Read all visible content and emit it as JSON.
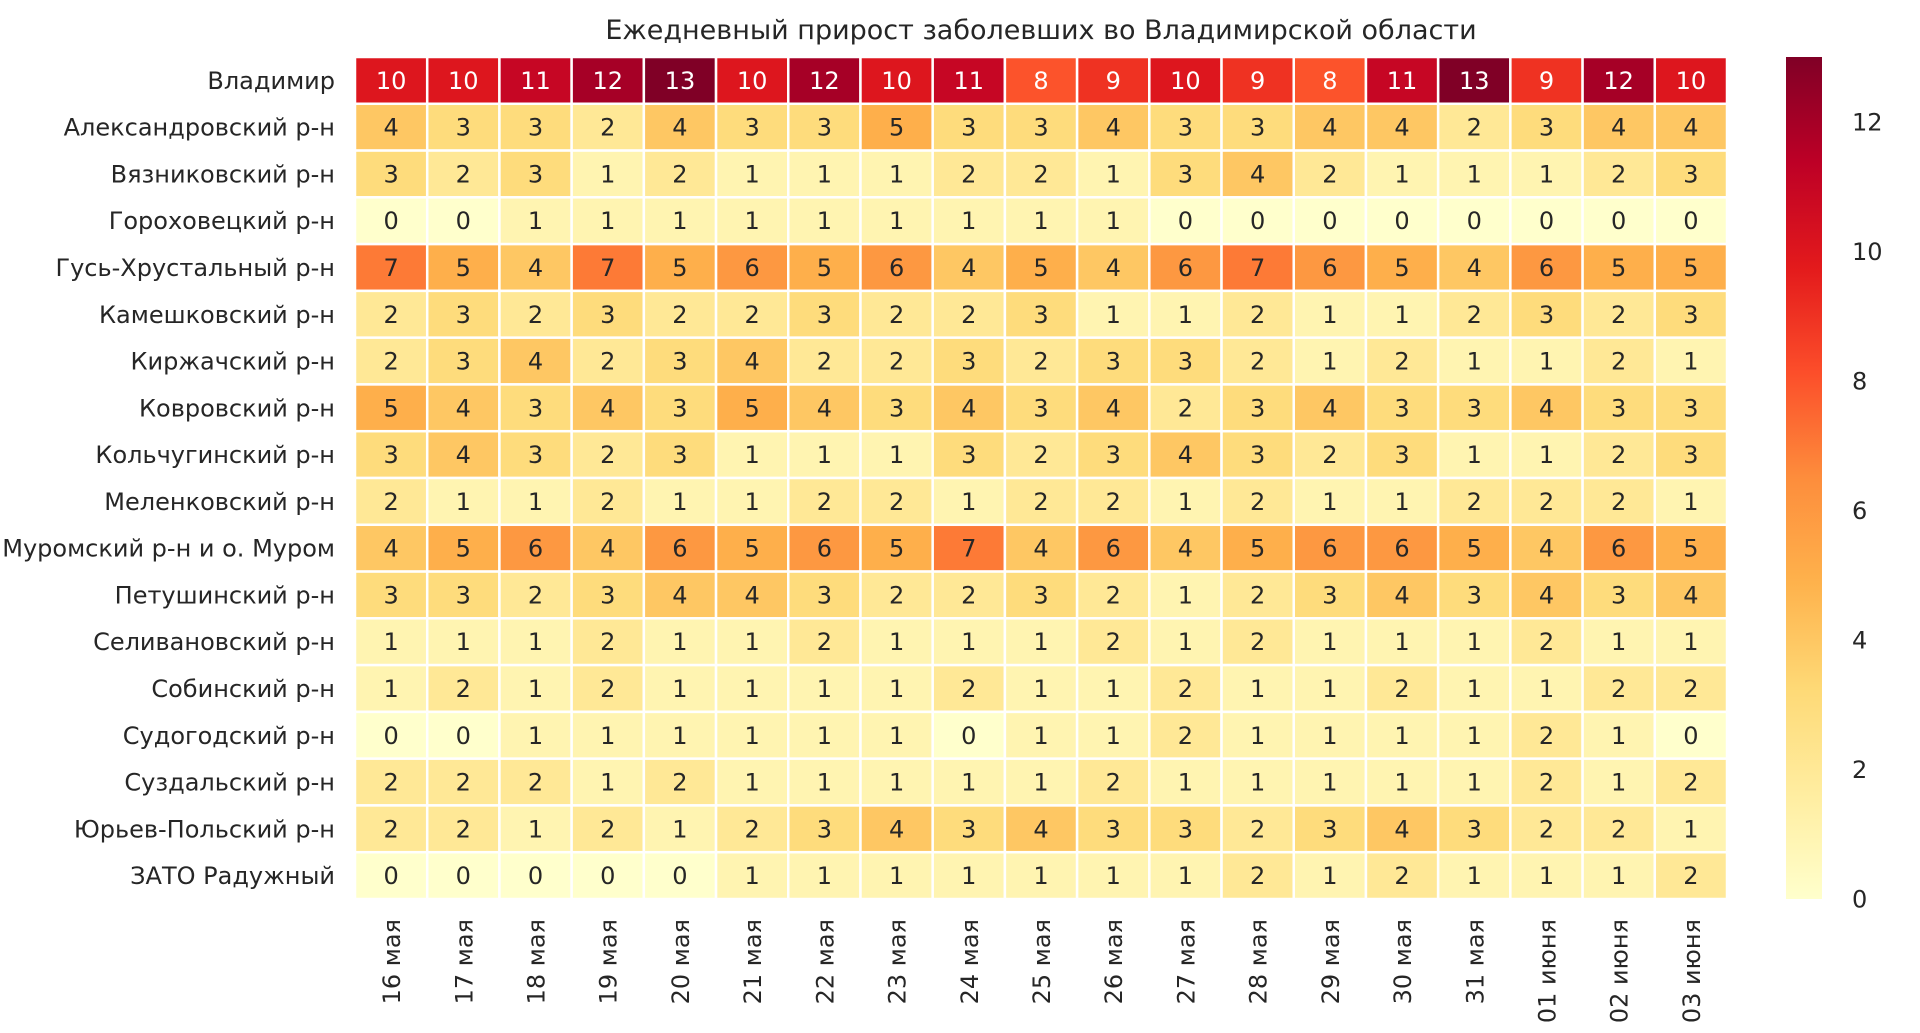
{
  "chart_data": {
    "type": "heatmap",
    "title": "Ежедневный прирост заболевших во Владимирской области",
    "xlabel": "",
    "ylabel": "",
    "x_categories": [
      "16 мая",
      "17 мая",
      "18 мая",
      "19 мая",
      "20 мая",
      "21 мая",
      "22 мая",
      "23 мая",
      "24 мая",
      "25 мая",
      "26 мая",
      "27 мая",
      "28 мая",
      "29 мая",
      "30 мая",
      "31 мая",
      "01 июня",
      "02 июня",
      "03 июня"
    ],
    "y_categories": [
      "Владимир",
      "Александровский р-н",
      "Вязниковский р-н",
      "Гороховецкий р-н",
      "Гусь-Хрустальный р-н",
      "Камешковский р-н",
      "Киржачский р-н",
      "Ковровский р-н",
      "Кольчугинский р-н",
      "Меленковский р-н",
      "Муромский р-н и о. Муром",
      "Петушинский р-н",
      "Селивановский р-н",
      "Собинский р-н",
      "Судогодский р-н",
      "Суздальский р-н",
      "Юрьев-Польский р-н",
      "ЗАТО Радужный"
    ],
    "values": [
      [
        10,
        10,
        11,
        12,
        13,
        10,
        12,
        10,
        11,
        8,
        9,
        10,
        9,
        8,
        11,
        13,
        9,
        12,
        10
      ],
      [
        4,
        3,
        3,
        2,
        4,
        3,
        3,
        5,
        3,
        3,
        4,
        3,
        3,
        4,
        4,
        2,
        3,
        4,
        4
      ],
      [
        3,
        2,
        3,
        1,
        2,
        1,
        1,
        1,
        2,
        2,
        1,
        3,
        4,
        2,
        1,
        1,
        1,
        2,
        3
      ],
      [
        0,
        0,
        1,
        1,
        1,
        1,
        1,
        1,
        1,
        1,
        1,
        0,
        0,
        0,
        0,
        0,
        0,
        0,
        0
      ],
      [
        7,
        5,
        4,
        7,
        5,
        6,
        5,
        6,
        4,
        5,
        4,
        6,
        7,
        6,
        5,
        4,
        6,
        5,
        5
      ],
      [
        2,
        3,
        2,
        3,
        2,
        2,
        3,
        2,
        2,
        3,
        1,
        1,
        2,
        1,
        1,
        2,
        3,
        2,
        3
      ],
      [
        2,
        3,
        4,
        2,
        3,
        4,
        2,
        2,
        3,
        2,
        3,
        3,
        2,
        1,
        2,
        1,
        1,
        2,
        1
      ],
      [
        5,
        4,
        3,
        4,
        3,
        5,
        4,
        3,
        4,
        3,
        4,
        2,
        3,
        4,
        3,
        3,
        4,
        3,
        3
      ],
      [
        3,
        4,
        3,
        2,
        3,
        1,
        1,
        1,
        3,
        2,
        3,
        4,
        3,
        2,
        3,
        1,
        1,
        2,
        3
      ],
      [
        2,
        1,
        1,
        2,
        1,
        1,
        2,
        2,
        1,
        2,
        2,
        1,
        2,
        1,
        1,
        2,
        2,
        2,
        1
      ],
      [
        4,
        5,
        6,
        4,
        6,
        5,
        6,
        5,
        7,
        4,
        6,
        4,
        5,
        6,
        6,
        5,
        4,
        6,
        5
      ],
      [
        3,
        3,
        2,
        3,
        4,
        4,
        3,
        2,
        2,
        3,
        2,
        1,
        2,
        3,
        4,
        3,
        4,
        3,
        4
      ],
      [
        1,
        1,
        1,
        2,
        1,
        1,
        2,
        1,
        1,
        1,
        2,
        1,
        2,
        1,
        1,
        1,
        2,
        1,
        1
      ],
      [
        1,
        2,
        1,
        2,
        1,
        1,
        1,
        1,
        2,
        1,
        1,
        2,
        1,
        1,
        2,
        1,
        1,
        2,
        2
      ],
      [
        0,
        0,
        1,
        1,
        1,
        1,
        1,
        1,
        0,
        1,
        1,
        2,
        1,
        1,
        1,
        1,
        2,
        1,
        0
      ],
      [
        2,
        2,
        2,
        1,
        2,
        1,
        1,
        1,
        1,
        1,
        2,
        1,
        1,
        1,
        1,
        1,
        2,
        1,
        2
      ],
      [
        2,
        2,
        1,
        2,
        1,
        2,
        3,
        4,
        3,
        4,
        3,
        3,
        2,
        3,
        4,
        3,
        2,
        2,
        1
      ],
      [
        0,
        0,
        0,
        0,
        0,
        1,
        1,
        1,
        1,
        1,
        1,
        1,
        2,
        1,
        2,
        1,
        1,
        1,
        2
      ]
    ],
    "vmin": 0,
    "vmax": 13,
    "colormap": "YlOrRd",
    "colorbar": {
      "ticks": [
        0,
        2,
        4,
        6,
        8,
        10,
        12
      ],
      "tick_labels": [
        "0",
        "2",
        "4",
        "6",
        "8",
        "10",
        "12"
      ]
    },
    "colors": [
      "#ffffcc",
      "#ffeda0",
      "#fed976",
      "#feb24c",
      "#fd8d3c",
      "#fc4e2a",
      "#e31a1c",
      "#bd0026",
      "#800026"
    ],
    "cell_border_color": "#ffffff",
    "text_dark": "#262626",
    "text_light": "#ffffff"
  }
}
